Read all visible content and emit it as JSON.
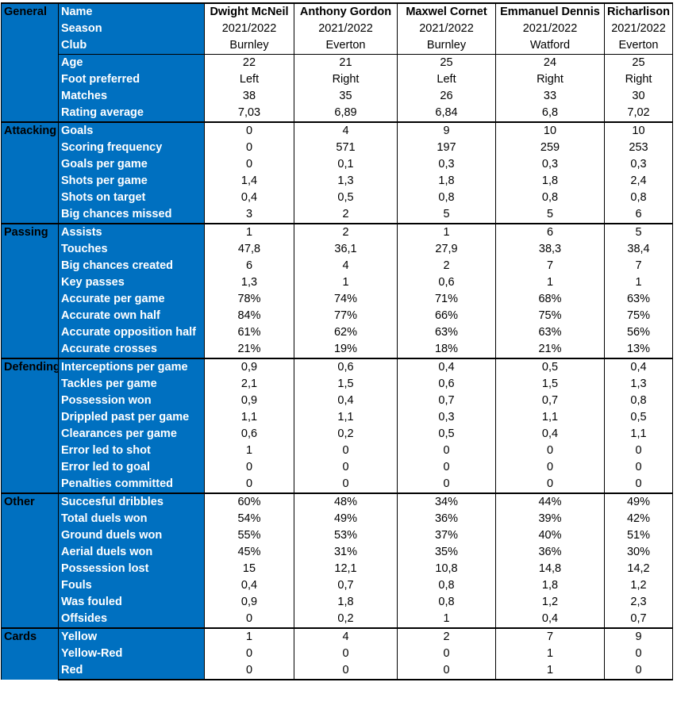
{
  "players": [
    "Dwight McNeil",
    "Anthony Gordon",
    "Maxwel Cornet",
    "Emmanuel Dennis",
    "Richarlison"
  ],
  "header_label": "Name",
  "sections": [
    {
      "category": "General",
      "rows": [
        {
          "label": "Name",
          "header": true
        },
        {
          "label": "Season",
          "values": [
            "2021/2022",
            "2021/2022",
            "2021/2022",
            "2021/2022",
            "2021/2022"
          ]
        },
        {
          "label": "Club",
          "values": [
            "Burnley",
            "Everton",
            "Burnley",
            "Watford",
            "Everton"
          ]
        },
        {
          "label": "Age",
          "values": [
            "22",
            "21",
            "25",
            "24",
            "25"
          ],
          "sep": true
        },
        {
          "label": "Foot preferred",
          "values": [
            "Left",
            "Right",
            "Left",
            "Right",
            "Right"
          ]
        },
        {
          "label": "Matches",
          "values": [
            "38",
            "35",
            "26",
            "33",
            "30"
          ]
        },
        {
          "label": "Rating average",
          "values": [
            "7,03",
            "6,89",
            "6,84",
            "6,8",
            "7,02"
          ]
        }
      ]
    },
    {
      "category": "Attacking",
      "rows": [
        {
          "label": "Goals",
          "values": [
            "0",
            "4",
            "9",
            "10",
            "10"
          ]
        },
        {
          "label": "Scoring frequency",
          "values": [
            "0",
            "571",
            "197",
            "259",
            "253"
          ]
        },
        {
          "label": "Goals per game",
          "values": [
            "0",
            "0,1",
            "0,3",
            "0,3",
            "0,3"
          ]
        },
        {
          "label": "Shots per game",
          "values": [
            "1,4",
            "1,3",
            "1,8",
            "1,8",
            "2,4"
          ]
        },
        {
          "label": "Shots on target",
          "values": [
            "0,4",
            "0,5",
            "0,8",
            "0,8",
            "0,8"
          ]
        },
        {
          "label": "Big chances missed",
          "values": [
            "3",
            "2",
            "5",
            "5",
            "6"
          ]
        }
      ]
    },
    {
      "category": "Passing",
      "rows": [
        {
          "label": "Assists",
          "values": [
            "1",
            "2",
            "1",
            "6",
            "5"
          ]
        },
        {
          "label": "Touches",
          "values": [
            "47,8",
            "36,1",
            "27,9",
            "38,3",
            "38,4"
          ]
        },
        {
          "label": "Big chances created",
          "values": [
            "6",
            "4",
            "2",
            "7",
            "7"
          ]
        },
        {
          "label": "Key passes",
          "values": [
            "1,3",
            "1",
            "0,6",
            "1",
            "1"
          ]
        },
        {
          "label": "Accurate per game",
          "values": [
            "78%",
            "74%",
            "71%",
            "68%",
            "63%"
          ]
        },
        {
          "label": "Accurate own half",
          "values": [
            "84%",
            "77%",
            "66%",
            "75%",
            "75%"
          ]
        },
        {
          "label": "Accurate opposition half",
          "values": [
            "61%",
            "62%",
            "63%",
            "63%",
            "56%"
          ]
        },
        {
          "label": "Accurate crosses",
          "values": [
            "21%",
            "19%",
            "18%",
            "21%",
            "13%"
          ]
        }
      ]
    },
    {
      "category": "Defending",
      "rows": [
        {
          "label": "Interceptions per game",
          "values": [
            "0,9",
            "0,6",
            "0,4",
            "0,5",
            "0,4"
          ]
        },
        {
          "label": "Tackles per game",
          "values": [
            "2,1",
            "1,5",
            "0,6",
            "1,5",
            "1,3"
          ]
        },
        {
          "label": "Possession won",
          "values": [
            "0,9",
            "0,4",
            "0,7",
            "0,7",
            "0,8"
          ]
        },
        {
          "label": "Drippled past per game",
          "values": [
            "1,1",
            "1,1",
            "0,3",
            "1,1",
            "0,5"
          ]
        },
        {
          "label": "Clearances per game",
          "values": [
            "0,6",
            "0,2",
            "0,5",
            "0,4",
            "1,1"
          ]
        },
        {
          "label": "Error led to shot",
          "values": [
            "1",
            "0",
            "0",
            "0",
            "0"
          ]
        },
        {
          "label": "Error led to goal",
          "values": [
            "0",
            "0",
            "0",
            "0",
            "0"
          ]
        },
        {
          "label": "Penalties committed",
          "values": [
            "0",
            "0",
            "0",
            "0",
            "0"
          ]
        }
      ]
    },
    {
      "category": "Other",
      "rows": [
        {
          "label": "Succesful dribbles",
          "values": [
            "60%",
            "48%",
            "34%",
            "44%",
            "49%"
          ]
        },
        {
          "label": "Total duels won",
          "values": [
            "54%",
            "49%",
            "36%",
            "39%",
            "42%"
          ]
        },
        {
          "label": "Ground duels won",
          "values": [
            "55%",
            "53%",
            "37%",
            "40%",
            "51%"
          ]
        },
        {
          "label": "Aerial duels won",
          "values": [
            "45%",
            "31%",
            "35%",
            "36%",
            "30%"
          ]
        },
        {
          "label": "Possession lost",
          "values": [
            "15",
            "12,1",
            "10,8",
            "14,8",
            "14,2"
          ]
        },
        {
          "label": "Fouls",
          "values": [
            "0,4",
            "0,7",
            "0,8",
            "1,8",
            "1,2"
          ]
        },
        {
          "label": "Was fouled",
          "values": [
            "0,9",
            "1,8",
            "0,8",
            "1,2",
            "2,3"
          ]
        },
        {
          "label": "Offsides",
          "values": [
            "0",
            "0,2",
            "1",
            "0,4",
            "0,7"
          ]
        }
      ]
    },
    {
      "category": "Cards",
      "rows": [
        {
          "label": "Yellow",
          "values": [
            "1",
            "4",
            "2",
            "7",
            "9"
          ]
        },
        {
          "label": "Yellow-Red",
          "values": [
            "0",
            "0",
            "0",
            "1",
            "0"
          ]
        },
        {
          "label": "Red",
          "values": [
            "0",
            "0",
            "0",
            "1",
            "0"
          ]
        }
      ]
    }
  ],
  "colors": {
    "label_bg": "#0070c0",
    "label_text": "#ffffff",
    "category_text": "#000000",
    "cell_bg": "#ffffff",
    "border": "#000000"
  }
}
